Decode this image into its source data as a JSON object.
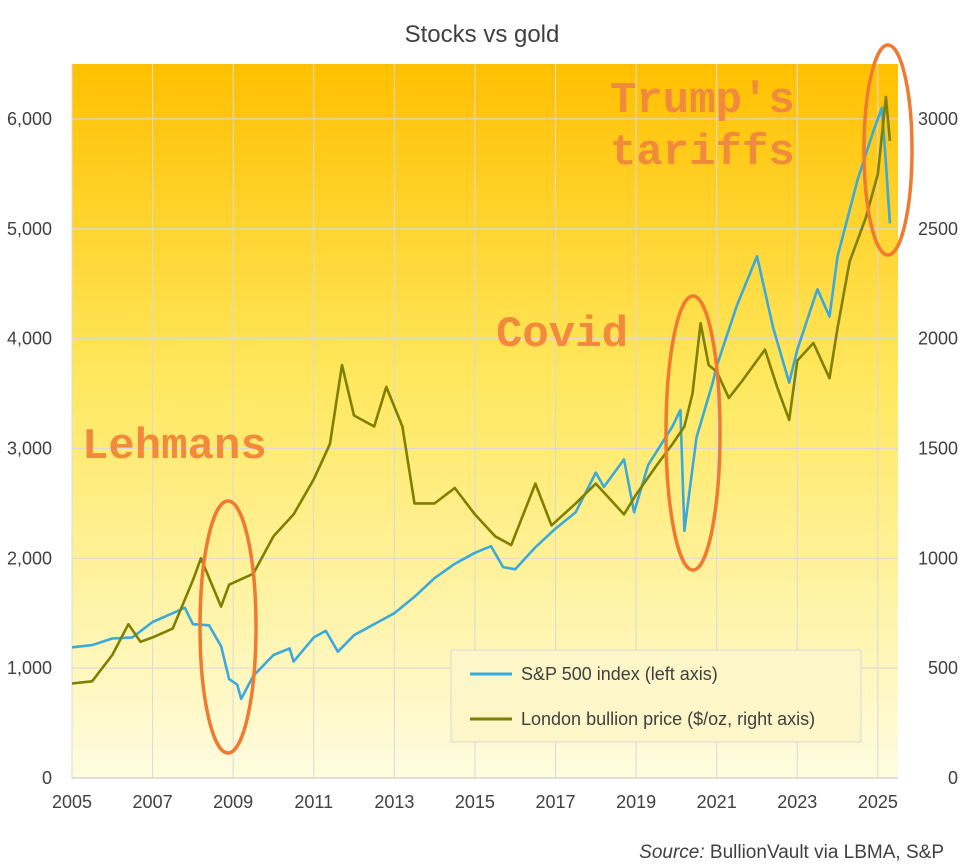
{
  "chart_data": {
    "type": "line",
    "title": "Stocks vs gold",
    "x_ticks": [
      "2005",
      "2007",
      "2009",
      "2011",
      "2013",
      "2015",
      "2017",
      "2019",
      "2021",
      "2023",
      "2025"
    ],
    "y_left": {
      "ticks": [
        "0",
        "1,000",
        "2,000",
        "3,000",
        "4,000",
        "5,000",
        "6,000"
      ],
      "range": [
        0,
        6500
      ]
    },
    "y_right": {
      "ticks": [
        "0",
        "500",
        "1000",
        "1500",
        "2000",
        "2500",
        "3000"
      ],
      "range": [
        0,
        3250
      ]
    },
    "grid": true,
    "legend": "bottom-right",
    "series": [
      {
        "name": "S&P 500 index (left axis)",
        "axis": "left",
        "color": "#3aa9dc",
        "points": [
          [
            2005.0,
            1190
          ],
          [
            2005.5,
            1210
          ],
          [
            2006.0,
            1270
          ],
          [
            2006.5,
            1280
          ],
          [
            2007.0,
            1420
          ],
          [
            2007.5,
            1500
          ],
          [
            2007.8,
            1550
          ],
          [
            2008.0,
            1400
          ],
          [
            2008.4,
            1390
          ],
          [
            2008.7,
            1200
          ],
          [
            2008.9,
            900
          ],
          [
            2009.1,
            850
          ],
          [
            2009.2,
            720
          ],
          [
            2009.5,
            930
          ],
          [
            2010.0,
            1120
          ],
          [
            2010.4,
            1180
          ],
          [
            2010.5,
            1060
          ],
          [
            2011.0,
            1280
          ],
          [
            2011.3,
            1340
          ],
          [
            2011.6,
            1150
          ],
          [
            2012.0,
            1300
          ],
          [
            2012.5,
            1400
          ],
          [
            2013.0,
            1500
          ],
          [
            2013.5,
            1650
          ],
          [
            2014.0,
            1820
          ],
          [
            2014.5,
            1950
          ],
          [
            2015.0,
            2050
          ],
          [
            2015.4,
            2110
          ],
          [
            2015.7,
            1920
          ],
          [
            2016.0,
            1900
          ],
          [
            2016.5,
            2100
          ],
          [
            2017.0,
            2270
          ],
          [
            2017.5,
            2420
          ],
          [
            2018.0,
            2780
          ],
          [
            2018.2,
            2650
          ],
          [
            2018.7,
            2900
          ],
          [
            2018.95,
            2420
          ],
          [
            2019.3,
            2850
          ],
          [
            2019.9,
            3200
          ],
          [
            2020.1,
            3350
          ],
          [
            2020.2,
            2250
          ],
          [
            2020.5,
            3100
          ],
          [
            2020.9,
            3600
          ],
          [
            2021.0,
            3750
          ],
          [
            2021.5,
            4300
          ],
          [
            2022.0,
            4750
          ],
          [
            2022.4,
            4100
          ],
          [
            2022.8,
            3600
          ],
          [
            2023.0,
            3900
          ],
          [
            2023.5,
            4450
          ],
          [
            2023.8,
            4200
          ],
          [
            2024.0,
            4750
          ],
          [
            2024.5,
            5450
          ],
          [
            2024.9,
            5900
          ],
          [
            2025.1,
            6100
          ],
          [
            2025.2,
            5600
          ],
          [
            2025.3,
            5050
          ]
        ]
      },
      {
        "name": "London bullion price ($/oz, right axis)",
        "axis": "right",
        "color": "#7f7f00",
        "points": [
          [
            2005.0,
            430
          ],
          [
            2005.5,
            440
          ],
          [
            2006.0,
            560
          ],
          [
            2006.4,
            700
          ],
          [
            2006.7,
            620
          ],
          [
            2007.0,
            640
          ],
          [
            2007.5,
            680
          ],
          [
            2008.0,
            900
          ],
          [
            2008.2,
            1000
          ],
          [
            2008.7,
            780
          ],
          [
            2008.9,
            880
          ],
          [
            2009.5,
            930
          ],
          [
            2010.0,
            1100
          ],
          [
            2010.5,
            1200
          ],
          [
            2011.0,
            1360
          ],
          [
            2011.4,
            1520
          ],
          [
            2011.7,
            1880
          ],
          [
            2012.0,
            1650
          ],
          [
            2012.5,
            1600
          ],
          [
            2012.8,
            1780
          ],
          [
            2013.2,
            1600
          ],
          [
            2013.5,
            1250
          ],
          [
            2014.0,
            1250
          ],
          [
            2014.5,
            1320
          ],
          [
            2015.0,
            1200
          ],
          [
            2015.5,
            1100
          ],
          [
            2015.9,
            1060
          ],
          [
            2016.5,
            1340
          ],
          [
            2016.9,
            1150
          ],
          [
            2017.5,
            1250
          ],
          [
            2018.0,
            1340
          ],
          [
            2018.7,
            1200
          ],
          [
            2019.0,
            1290
          ],
          [
            2019.5,
            1420
          ],
          [
            2019.9,
            1520
          ],
          [
            2020.2,
            1600
          ],
          [
            2020.4,
            1750
          ],
          [
            2020.6,
            2070
          ],
          [
            2020.8,
            1880
          ],
          [
            2021.0,
            1850
          ],
          [
            2021.3,
            1730
          ],
          [
            2021.6,
            1800
          ],
          [
            2022.2,
            1950
          ],
          [
            2022.5,
            1780
          ],
          [
            2022.8,
            1630
          ],
          [
            2023.0,
            1900
          ],
          [
            2023.4,
            1980
          ],
          [
            2023.8,
            1820
          ],
          [
            2024.0,
            2050
          ],
          [
            2024.3,
            2350
          ],
          [
            2024.7,
            2550
          ],
          [
            2025.0,
            2750
          ],
          [
            2025.2,
            3100
          ],
          [
            2025.3,
            2900
          ]
        ]
      }
    ],
    "annotations": [
      {
        "label": "Lehmans"
      },
      {
        "label": "Covid"
      },
      {
        "label": "Trump's\ntariffs"
      }
    ],
    "source_italic": "Source:",
    "source_text": " BullionVault via LBMA, S&P"
  }
}
